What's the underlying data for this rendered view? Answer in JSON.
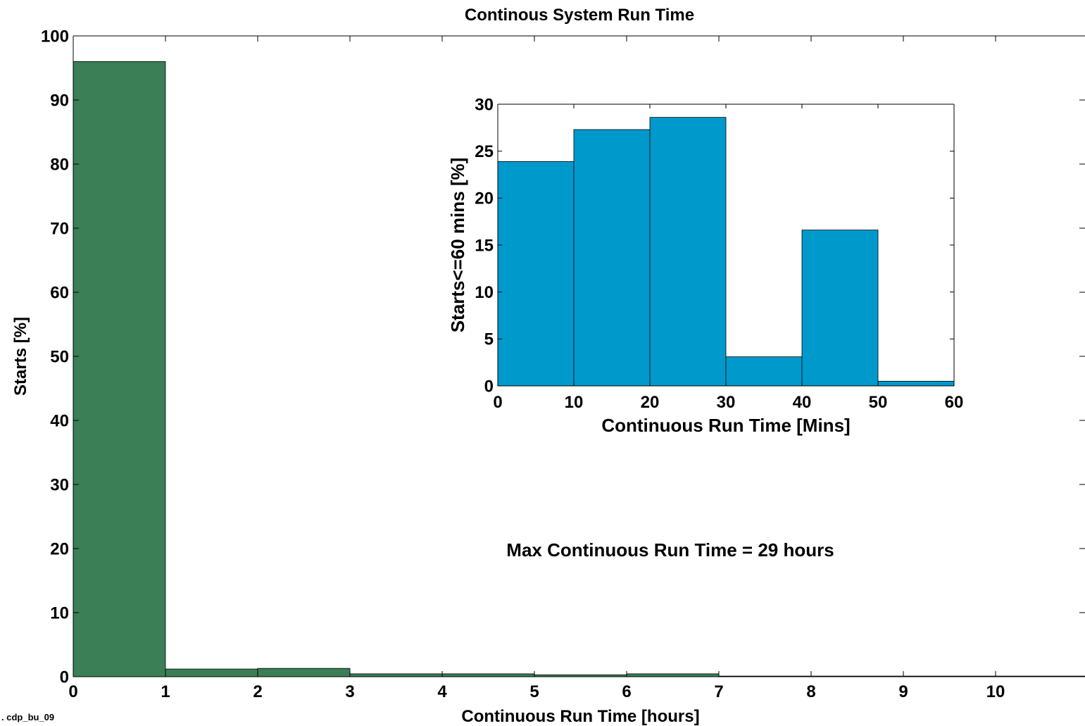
{
  "chart_data": [
    {
      "id": "main",
      "type": "bar",
      "title": "Continous System Run Time",
      "xlabel": "Continuous Run Time [hours]",
      "ylabel": "Starts [%]",
      "xlim": [
        0,
        11
      ],
      "ylim": [
        0,
        100
      ],
      "xticks": [
        0,
        1,
        2,
        3,
        4,
        5,
        6,
        7,
        8,
        9,
        10
      ],
      "yticks": [
        0,
        10,
        20,
        30,
        40,
        50,
        60,
        70,
        80,
        90,
        100
      ],
      "bin_width": 1,
      "bins": [
        {
          "x0": 0,
          "value": 96.0
        },
        {
          "x0": 1,
          "value": 1.2
        },
        {
          "x0": 2,
          "value": 1.3
        },
        {
          "x0": 3,
          "value": 0.45
        },
        {
          "x0": 4,
          "value": 0.45
        },
        {
          "x0": 5,
          "value": 0.3
        },
        {
          "x0": 6,
          "value": 0.45
        },
        {
          "x0": 7,
          "value": 0.1
        },
        {
          "x0": 8,
          "value": 0.1
        },
        {
          "x0": 9,
          "value": 0.1
        },
        {
          "x0": 10,
          "value": 0.1
        }
      ],
      "bar_color": "#3a7f56",
      "grid": false,
      "annotation": "Max Continuous Run Time = 29 hours"
    },
    {
      "id": "inset",
      "type": "bar",
      "title": "",
      "xlabel": "Continuous Run Time [Mins]",
      "ylabel": "Starts<=60 mins [%]",
      "xlim": [
        0,
        60
      ],
      "ylim": [
        0,
        30
      ],
      "xticks": [
        0,
        10,
        20,
        30,
        40,
        50,
        60
      ],
      "yticks": [
        0,
        5,
        10,
        15,
        20,
        25,
        30
      ],
      "bin_width": 10,
      "bins": [
        {
          "x0": 0,
          "value": 23.9
        },
        {
          "x0": 10,
          "value": 27.3
        },
        {
          "x0": 20,
          "value": 28.6
        },
        {
          "x0": 30,
          "value": 3.1
        },
        {
          "x0": 40,
          "value": 16.6
        },
        {
          "x0": 50,
          "value": 0.5
        }
      ],
      "bar_color": "#0099cc",
      "grid": false
    }
  ],
  "footer_label": ". cdp_bu_09"
}
